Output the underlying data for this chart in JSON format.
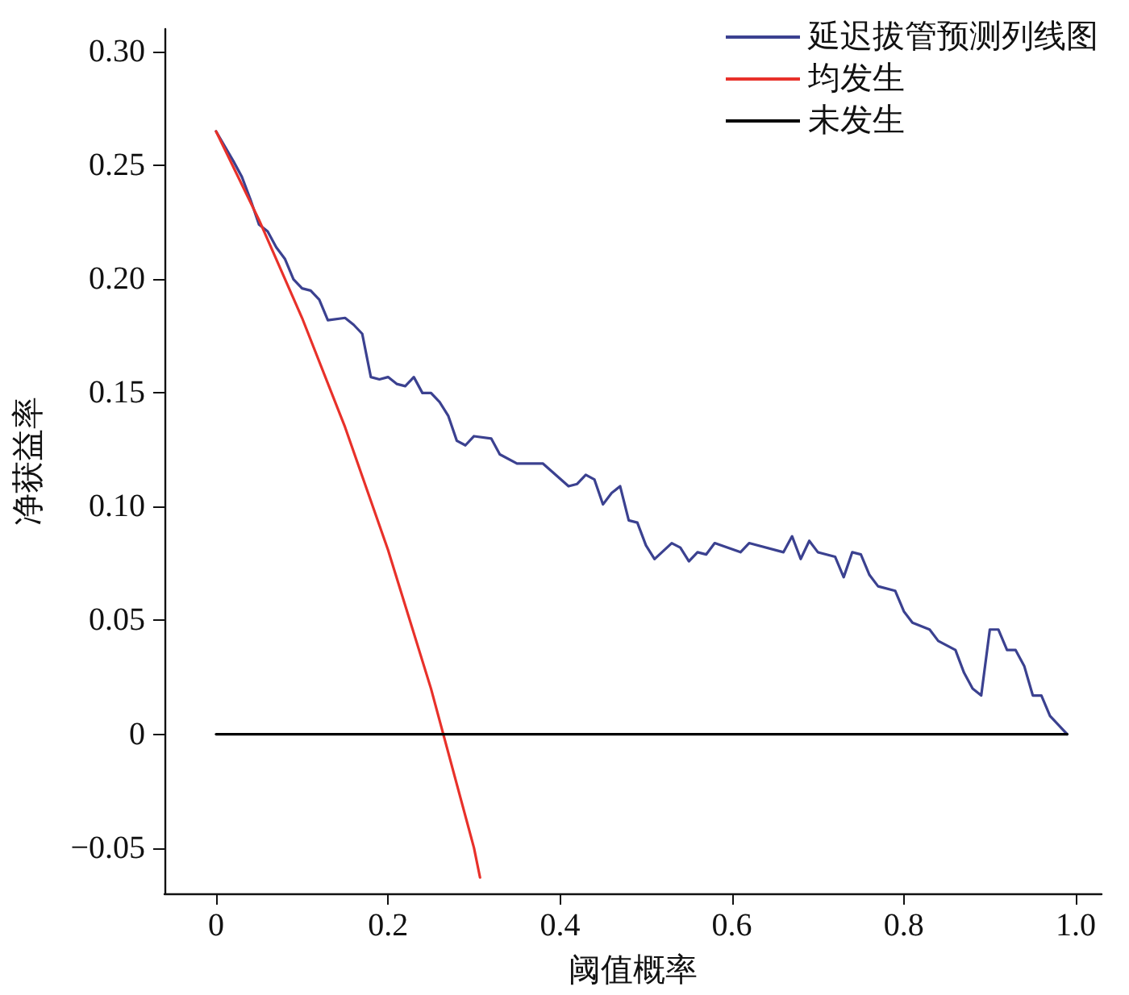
{
  "chart_data": {
    "type": "line",
    "xlabel": "阈值概率",
    "ylabel": "净获益率",
    "xlim": [
      -0.06,
      1.03
    ],
    "ylim": [
      -0.07,
      0.31
    ],
    "xticks": [
      0,
      0.2,
      0.4,
      0.6,
      0.8,
      {
        "value": 1,
        "label": "1.0"
      }
    ],
    "yticks": [
      {
        "value": -0.05,
        "label": "−0.05"
      },
      0,
      0.05,
      {
        "value": 0.1,
        "label": "0.10"
      },
      0.15,
      {
        "value": 0.2,
        "label": "0.20"
      },
      0.25,
      {
        "value": 0.3,
        "label": "0.30"
      }
    ],
    "grid": false,
    "legend": "top right",
    "marker": "none",
    "line_style": "solid",
    "series": [
      {
        "name": "延迟拔管预测列线图",
        "color": "#3b4190",
        "x": [
          0,
          0.02,
          0.03,
          0.04,
          0.05,
          0.06,
          0.07,
          0.08,
          0.09,
          0.1,
          0.11,
          0.12,
          0.13,
          0.15,
          0.16,
          0.17,
          0.18,
          0.19,
          0.2,
          0.21,
          0.22,
          0.23,
          0.24,
          0.25,
          0.26,
          0.27,
          0.28,
          0.29,
          0.3,
          0.32,
          0.33,
          0.35,
          0.38,
          0.41,
          0.42,
          0.43,
          0.44,
          0.45,
          0.46,
          0.47,
          0.48,
          0.49,
          0.5,
          0.51,
          0.53,
          0.54,
          0.55,
          0.56,
          0.57,
          0.58,
          0.61,
          0.62,
          0.66,
          0.67,
          0.68,
          0.69,
          0.7,
          0.72,
          0.73,
          0.74,
          0.75,
          0.76,
          0.77,
          0.79,
          0.8,
          0.81,
          0.83,
          0.84,
          0.86,
          0.87,
          0.88,
          0.89,
          0.9,
          0.91,
          0.92,
          0.93,
          0.94,
          0.95,
          0.96,
          0.97,
          0.99
        ],
        "values": [
          0.265,
          0.252,
          0.245,
          0.235,
          0.224,
          0.221,
          0.214,
          0.209,
          0.2,
          0.196,
          0.195,
          0.191,
          0.182,
          0.183,
          0.18,
          0.176,
          0.157,
          0.156,
          0.157,
          0.154,
          0.153,
          0.157,
          0.15,
          0.15,
          0.146,
          0.14,
          0.129,
          0.127,
          0.131,
          0.13,
          0.123,
          0.119,
          0.119,
          0.109,
          0.11,
          0.114,
          0.112,
          0.101,
          0.106,
          0.109,
          0.094,
          0.093,
          0.083,
          0.077,
          0.084,
          0.082,
          0.076,
          0.08,
          0.079,
          0.084,
          0.08,
          0.084,
          0.08,
          0.087,
          0.077,
          0.085,
          0.08,
          0.078,
          0.069,
          0.08,
          0.079,
          0.07,
          0.065,
          0.063,
          0.054,
          0.049,
          0.046,
          0.041,
          0.037,
          0.027,
          0.02,
          0.017,
          0.046,
          0.046,
          0.037,
          0.037,
          0.03,
          0.017,
          0.017,
          0.008,
          0
        ]
      },
      {
        "name": "均发生",
        "color": "#e8312a",
        "x": [
          0,
          0.05,
          0.1,
          0.15,
          0.2,
          0.25,
          0.3,
          0.307
        ],
        "values": [
          0.265,
          0.226,
          0.183,
          0.135,
          0.081,
          0.02,
          -0.05,
          -0.063
        ]
      },
      {
        "name": "未发生",
        "color": "#000000",
        "x": [
          0,
          0.99
        ],
        "values": [
          0,
          0
        ]
      }
    ]
  }
}
